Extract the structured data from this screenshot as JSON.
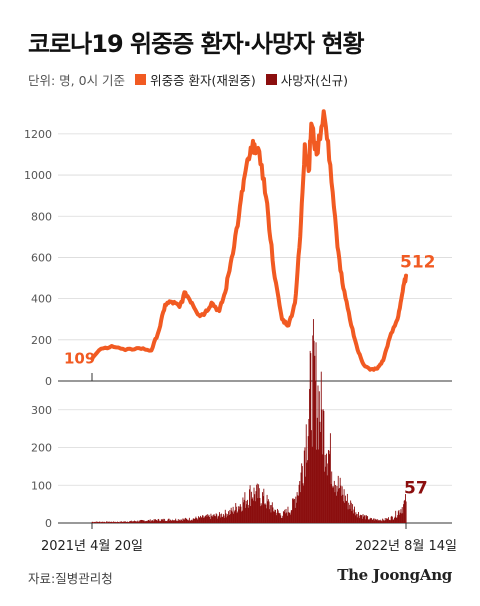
{
  "header": {
    "title": "코로나19 위중증 환자·사망자 현황",
    "unit_note": "단위: 명, 0시 기준",
    "legend": [
      {
        "label": "위중증 환자(재원중)",
        "color": "#f15a22"
      },
      {
        "label": "사망자(신규)",
        "color": "#8b0e0e"
      }
    ]
  },
  "chart_data": [
    {
      "type": "line",
      "series": [
        {
          "name": "위중증 환자(재원중)",
          "color": "#f15a22"
        }
      ],
      "x": [
        "2021-04-20",
        "2021-05-01",
        "2021-05-20",
        "2021-06-10",
        "2021-07-01",
        "2021-07-20",
        "2021-08-01",
        "2021-08-10",
        "2021-08-20",
        "2021-09-01",
        "2021-09-10",
        "2021-09-20",
        "2021-10-01",
        "2021-10-10",
        "2021-10-20",
        "2021-11-01",
        "2021-11-10",
        "2021-11-20",
        "2021-12-01",
        "2021-12-10",
        "2021-12-18",
        "2021-12-25",
        "2022-01-05",
        "2022-01-15",
        "2022-01-25",
        "2022-02-05",
        "2022-02-15",
        "2022-02-25",
        "2022-03-05",
        "2022-03-12",
        "2022-03-18",
        "2022-03-22",
        "2022-03-30",
        "2022-04-10",
        "2022-04-20",
        "2022-05-01",
        "2022-05-10",
        "2022-05-20",
        "2022-06-01",
        "2022-06-10",
        "2022-06-20",
        "2022-07-01",
        "2022-07-10",
        "2022-07-20",
        "2022-08-01",
        "2022-08-08",
        "2022-08-14"
      ],
      "y": [
        109,
        150,
        170,
        150,
        160,
        148,
        250,
        370,
        385,
        360,
        430,
        380,
        320,
        330,
        380,
        340,
        430,
        600,
        800,
        1000,
        1100,
        1150,
        1050,
        800,
        500,
        300,
        270,
        380,
        700,
        1150,
        1020,
        1250,
        1100,
        1310,
        1050,
        650,
        450,
        300,
        150,
        80,
        55,
        60,
        100,
        210,
        300,
        420,
        512
      ],
      "yticks": [
        0,
        200,
        400,
        600,
        800,
        1000,
        1200
      ],
      "ylim": [
        0,
        1350
      ],
      "annotations": [
        {
          "x": "2021-04-20",
          "text": "109"
        },
        {
          "x": "2022-08-14",
          "text": "512"
        }
      ]
    },
    {
      "type": "bar",
      "series": [
        {
          "name": "사망자(신규)",
          "color": "#8b0e0e"
        }
      ],
      "profile_dates": [
        "2021-04-20",
        "2021-06-01",
        "2021-08-01",
        "2021-09-15",
        "2021-11-01",
        "2021-11-20",
        "2021-12-10",
        "2021-12-20",
        "2022-01-05",
        "2022-01-20",
        "2022-02-05",
        "2022-02-20",
        "2022-03-05",
        "2022-03-15",
        "2022-03-24",
        "2022-04-01",
        "2022-04-10",
        "2022-04-20",
        "2022-05-01",
        "2022-05-15",
        "2022-06-01",
        "2022-06-20",
        "2022-07-10",
        "2022-07-25",
        "2022-08-05",
        "2022-08-14"
      ],
      "profile_values": [
        3,
        3,
        8,
        10,
        20,
        30,
        60,
        80,
        70,
        40,
        20,
        40,
        110,
        250,
        380,
        330,
        250,
        170,
        100,
        60,
        25,
        10,
        8,
        15,
        35,
        57
      ],
      "yticks": [
        0,
        100,
        200,
        300
      ],
      "ylim": [
        0,
        400
      ],
      "annotations": [
        {
          "x": "2022-08-14",
          "text": "57"
        }
      ]
    }
  ],
  "x_axis_labels": {
    "start": "2021년 4월 20일",
    "end": "2022년 8월 14일"
  },
  "footer": {
    "source": "자료:질병관리청",
    "brand": "The JoongAng"
  },
  "colors": {
    "line": "#f15a22",
    "bar": "#8b0e0e",
    "grid": "#d9d9d9"
  }
}
